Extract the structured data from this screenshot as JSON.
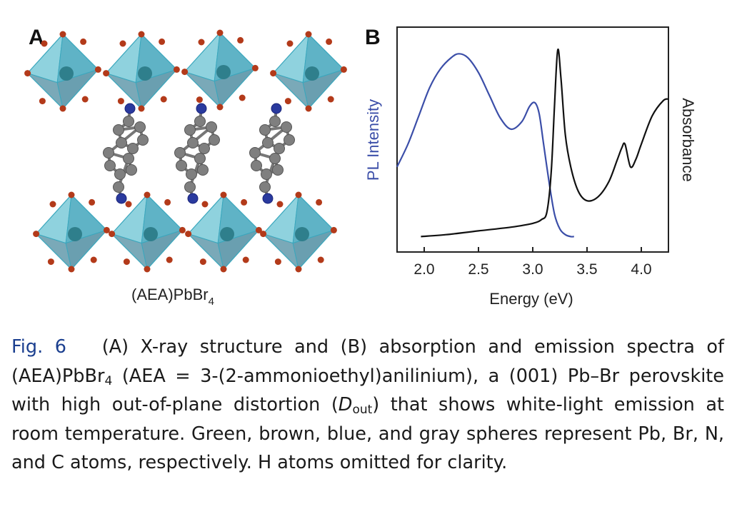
{
  "panel_a": {
    "label": "A",
    "compound_label_main": "(AEA)PbBr",
    "compound_label_sub": "4"
  },
  "panel_b": {
    "label": "B",
    "left_axis_label": "PL Intensity",
    "right_axis_label": "Absorbance",
    "x_axis_label": "Energy (eV)"
  },
  "chart_data": {
    "type": "line",
    "xlabel": "Energy (eV)",
    "ylabel_left": "PL Intensity",
    "ylabel_right": "Absorbance",
    "xlim": [
      1.75,
      4.25
    ],
    "x_ticks": [
      "2.0",
      "2.5",
      "3.0",
      "3.5",
      "4.0"
    ],
    "y_ticks_shown": false,
    "grid": false,
    "series": [
      {
        "name": "PL Intensity",
        "color": "#3b4ea8",
        "axis": "left",
        "x": [
          1.75,
          1.85,
          1.95,
          2.05,
          2.15,
          2.25,
          2.32,
          2.4,
          2.5,
          2.6,
          2.7,
          2.8,
          2.9,
          2.97,
          3.02,
          3.06,
          3.1,
          3.15,
          3.2,
          3.25,
          3.3,
          3.35,
          3.38
        ],
        "y": [
          0.38,
          0.5,
          0.65,
          0.8,
          0.9,
          0.96,
          0.98,
          0.96,
          0.88,
          0.76,
          0.64,
          0.58,
          0.62,
          0.7,
          0.72,
          0.66,
          0.5,
          0.3,
          0.13,
          0.05,
          0.02,
          0.01,
          0.01
        ]
      },
      {
        "name": "Absorbance",
        "color": "#111111",
        "axis": "right",
        "x": [
          1.97,
          2.2,
          2.5,
          2.8,
          3.0,
          3.08,
          3.13,
          3.17,
          3.2,
          3.23,
          3.26,
          3.3,
          3.35,
          3.42,
          3.5,
          3.6,
          3.7,
          3.78,
          3.82,
          3.85,
          3.9,
          3.95,
          4.0,
          4.1,
          4.2,
          4.25
        ],
        "y": [
          0.01,
          0.02,
          0.04,
          0.06,
          0.08,
          0.1,
          0.14,
          0.35,
          0.7,
          1.0,
          0.85,
          0.55,
          0.38,
          0.25,
          0.2,
          0.22,
          0.3,
          0.42,
          0.48,
          0.5,
          0.38,
          0.42,
          0.5,
          0.65,
          0.73,
          0.74
        ]
      }
    ]
  },
  "caption": {
    "fig_label": "Fig. 6",
    "text_1": "(A) X-ray structure and (B) absorption and emission spectra of (AEA)PbBr",
    "sub_1": "4",
    "text_2": " (AEA = 3-(2-ammonioethyl)anilinium), a (001) Pb–Br perovskite with high out-of-plane distortion (",
    "d_main": "D",
    "d_sub": "out",
    "text_3": ") that shows white-light emission at room temperature. Green, brown, blue, and gray spheres represent Pb, Br, N, and C atoms, respectively. H atoms omitted for clarity."
  }
}
